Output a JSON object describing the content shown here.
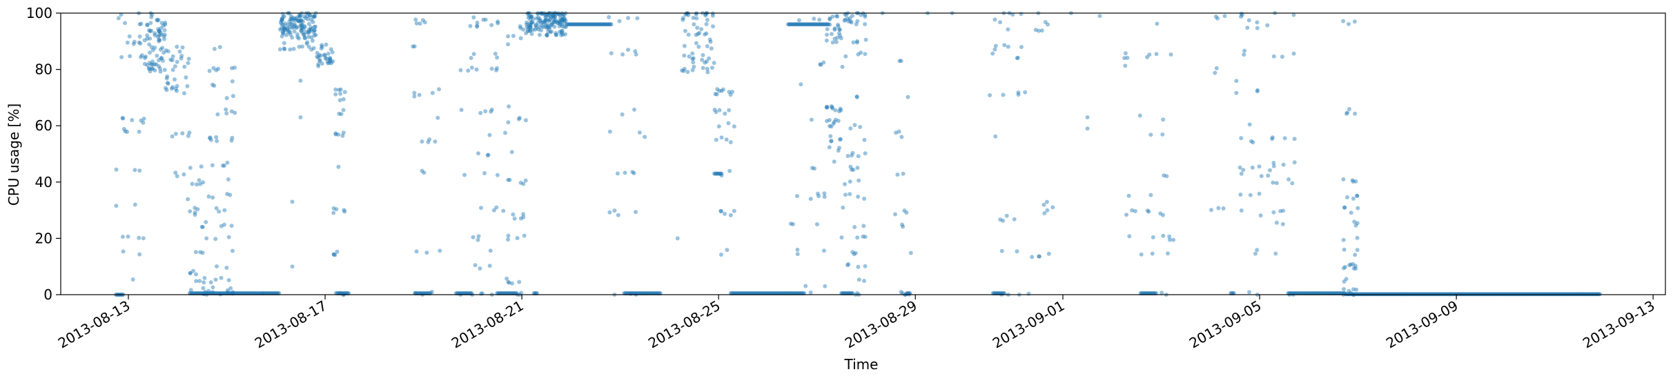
{
  "chart_data": {
    "type": "scatter",
    "title": "",
    "xlabel": "Time",
    "ylabel": "CPU usage [%]",
    "xlim": [
      "2013-08-11T15:00",
      "2013-09-13T06:00"
    ],
    "ylim": [
      0,
      100
    ],
    "grid": false,
    "legend": "none",
    "x_ticks": [
      "2013-08-13",
      "2013-08-17",
      "2013-08-21",
      "2013-08-25",
      "2013-08-29",
      "2013-09-01",
      "2013-09-05",
      "2013-09-09",
      "2013-09-13"
    ],
    "y_ticks": [
      0,
      20,
      40,
      60,
      80,
      100
    ],
    "series_color": "#1f77b4",
    "clusters": [
      {
        "start": "2013-08-12T18:00",
        "end": "2013-08-13T08:00",
        "count": 40,
        "values": [
          0,
          5,
          15,
          20,
          32,
          44,
          58,
          62,
          69,
          84,
          86,
          90,
          92,
          95,
          97,
          99,
          100
        ]
      },
      {
        "start": "2013-08-13T08:00",
        "end": "2013-08-13T18:00",
        "count": 70,
        "values": [
          80,
          81,
          82,
          84,
          86,
          88,
          90,
          92,
          94,
          96,
          98,
          100
        ]
      },
      {
        "start": "2013-08-13T18:00",
        "end": "2013-08-14T06:00",
        "count": 40,
        "values": [
          72,
          74,
          76,
          78,
          80,
          82,
          84,
          86,
          88,
          90,
          57,
          43,
          33
        ]
      },
      {
        "start": "2013-08-14T06:00",
        "end": "2013-08-14T14:00",
        "count": 30,
        "values": [
          0,
          2,
          5,
          8,
          15,
          25,
          29,
          30,
          40,
          45
        ]
      },
      {
        "start": "2013-08-14T14:00",
        "end": "2013-08-15T04:00",
        "count": 60,
        "values": [
          0,
          2,
          5,
          10,
          15,
          20,
          25,
          30,
          35,
          40,
          46,
          55,
          65,
          70,
          75,
          80,
          87
        ]
      },
      {
        "start": "2013-08-16T02:00",
        "end": "2013-08-16T20:00",
        "count": 130,
        "values": [
          88,
          90,
          92,
          93,
          94,
          95,
          96,
          97,
          98,
          99,
          100
        ]
      },
      {
        "start": "2013-08-16T20:00",
        "end": "2013-08-17T04:00",
        "count": 30,
        "values": [
          82,
          83,
          84,
          85,
          86,
          88
        ]
      },
      {
        "start": "2013-08-17T04:00",
        "end": "2013-08-17T10:00",
        "count": 30,
        "values": [
          72,
          70,
          65,
          57,
          45,
          30,
          15,
          0
        ]
      },
      {
        "start": "2013-08-18T18:00",
        "end": "2013-08-19T08:00",
        "count": 25,
        "values": [
          0,
          15,
          43,
          55,
          62,
          70,
          72,
          89,
          97
        ]
      },
      {
        "start": "2013-08-19T18:00",
        "end": "2013-08-20T16:00",
        "count": 50,
        "values": [
          0,
          10,
          15,
          20,
          30,
          43,
          50,
          57,
          65,
          80,
          85,
          96,
          98
        ]
      },
      {
        "start": "2013-08-20T16:00",
        "end": "2013-08-21T02:00",
        "count": 35,
        "values": [
          0,
          5,
          10,
          20,
          28,
          40,
          50,
          55,
          62,
          67,
          88,
          92,
          95
        ]
      },
      {
        "start": "2013-08-21T02:00",
        "end": "2013-08-21T22:00",
        "count": 140,
        "values": [
          93,
          95,
          96,
          97,
          98,
          99,
          100
        ]
      },
      {
        "start": "2013-08-22T18:00",
        "end": "2013-08-23T12:00",
        "count": 25,
        "values": [
          0,
          15,
          29,
          43,
          57,
          65,
          86,
          98
        ]
      },
      {
        "start": "2013-08-24T06:00",
        "end": "2013-08-24T22:00",
        "count": 60,
        "values": [
          80,
          83,
          85,
          88,
          90,
          92,
          93,
          95,
          97,
          99,
          100
        ]
      },
      {
        "start": "2013-08-24T22:00",
        "end": "2013-08-25T08:00",
        "count": 30,
        "values": [
          15,
          29,
          43,
          55,
          60,
          65,
          72
        ]
      },
      {
        "start": "2013-08-26T10:00",
        "end": "2013-08-27T04:00",
        "count": 25,
        "values": [
          0,
          3,
          15,
          25,
          35,
          44,
          63,
          74,
          82,
          98
        ]
      },
      {
        "start": "2013-08-27T04:00",
        "end": "2013-08-27T12:00",
        "count": 50,
        "values": [
          48,
          52,
          55,
          57,
          60,
          62,
          66,
          67,
          90,
          92,
          95,
          98
        ]
      },
      {
        "start": "2013-08-27T12:00",
        "end": "2013-08-28T00:00",
        "count": 70,
        "values": [
          0,
          5,
          10,
          15,
          20,
          25,
          30,
          35,
          40,
          45,
          50,
          55,
          60,
          70,
          80,
          85,
          90,
          97,
          99,
          100
        ]
      },
      {
        "start": "2013-08-28T14:00",
        "end": "2013-08-28T22:00",
        "count": 20,
        "values": [
          0,
          15,
          25,
          29,
          43,
          57,
          58,
          70,
          84
        ]
      },
      {
        "start": "2013-08-30T12:00",
        "end": "2013-08-31T06:00",
        "count": 30,
        "values": [
          0,
          15,
          27,
          43,
          57,
          71,
          85,
          88,
          94,
          97,
          100
        ]
      },
      {
        "start": "2013-08-31T06:00",
        "end": "2013-08-31T20:00",
        "count": 15,
        "values": [
          0,
          14,
          29,
          32,
          94,
          96
        ]
      },
      {
        "start": "2013-09-02T06:00",
        "end": "2013-09-03T06:00",
        "count": 35,
        "values": [
          0,
          15,
          20,
          29,
          43,
          56,
          63,
          71,
          85,
          97,
          82,
          85,
          36
        ]
      },
      {
        "start": "2013-09-04T00:00",
        "end": "2013-09-04T12:00",
        "count": 8,
        "values": [
          30,
          72,
          78,
          80,
          98
        ]
      },
      {
        "start": "2013-09-04T12:00",
        "end": "2013-09-05T06:00",
        "count": 35,
        "values": [
          0,
          15,
          29,
          36,
          43,
          45,
          55,
          60,
          72,
          75,
          86,
          95,
          97,
          99
        ]
      },
      {
        "start": "2013-09-05T06:00",
        "end": "2013-09-05T18:00",
        "count": 25,
        "values": [
          0,
          15,
          25,
          29,
          40,
          46,
          55,
          57,
          85,
          100
        ]
      },
      {
        "start": "2013-09-06T16:00",
        "end": "2013-09-07T00:00",
        "count": 45,
        "values": [
          0,
          2,
          5,
          10,
          15,
          20,
          25,
          30,
          35,
          40,
          64,
          65,
          97
        ]
      }
    ],
    "flat_runs": [
      {
        "start": "2013-08-12T18:00",
        "end": "2013-08-12T22:00",
        "y": 0
      },
      {
        "start": "2013-08-14T06:00",
        "end": "2013-08-15T02:00",
        "y": 0.5
      },
      {
        "start": "2013-08-15T02:00",
        "end": "2013-08-15T18:00",
        "y": 0.5
      },
      {
        "start": "2013-08-15T18:00",
        "end": "2013-08-16T02:00",
        "y": 0.5
      },
      {
        "start": "2013-08-17T06:00",
        "end": "2013-08-17T12:00",
        "y": 0.5
      },
      {
        "start": "2013-08-18T20:00",
        "end": "2013-08-19T04:00",
        "y": 0.5
      },
      {
        "start": "2013-08-19T16:00",
        "end": "2013-08-20T00:00",
        "y": 0.5
      },
      {
        "start": "2013-08-20T12:00",
        "end": "2013-08-20T22:00",
        "y": 0.5
      },
      {
        "start": "2013-08-21T06:00",
        "end": "2013-08-21T08:00",
        "y": 0.5
      },
      {
        "start": "2013-08-21T22:00",
        "end": "2013-08-22T20:00",
        "y": 96
      },
      {
        "start": "2013-08-23T02:00",
        "end": "2013-08-23T20:00",
        "y": 0.5
      },
      {
        "start": "2013-08-24T22:00",
        "end": "2013-08-25T02:00",
        "y": 43
      },
      {
        "start": "2013-08-25T06:00",
        "end": "2013-08-26T18:00",
        "y": 0.5
      },
      {
        "start": "2013-08-26T10:00",
        "end": "2013-08-27T06:00",
        "y": 96
      },
      {
        "start": "2013-08-27T12:00",
        "end": "2013-08-27T18:00",
        "y": 0.5
      },
      {
        "start": "2013-08-28T20:00",
        "end": "2013-08-28T22:00",
        "y": 0.5
      },
      {
        "start": "2013-08-30T14:00",
        "end": "2013-08-30T20:00",
        "y": 0.5
      },
      {
        "start": "2013-09-02T14:00",
        "end": "2013-09-02T22:00",
        "y": 0.5
      },
      {
        "start": "2013-09-04T10:00",
        "end": "2013-09-04T12:00",
        "y": 0.5
      },
      {
        "start": "2013-09-05T14:00",
        "end": "2013-09-06T18:00",
        "y": 0.5
      },
      {
        "start": "2013-09-06T18:00",
        "end": "2013-09-11T22:00",
        "y": 0.2
      }
    ],
    "scattered_high": [
      {
        "x": "2013-08-29T06:00",
        "y": 100
      },
      {
        "x": "2013-08-29T18:00",
        "y": 100
      },
      {
        "x": "2013-08-31T12:00",
        "y": 100
      },
      {
        "x": "2013-09-01T18:00",
        "y": 99
      },
      {
        "x": "2013-09-01T04:00",
        "y": 100
      },
      {
        "x": "2013-09-01T12:00",
        "y": 63
      },
      {
        "x": "2013-09-01T12:00",
        "y": 59
      },
      {
        "x": "2013-08-28T08:00",
        "y": 100
      },
      {
        "x": "2013-08-16T12:00",
        "y": 63
      },
      {
        "x": "2013-08-16T12:00",
        "y": 76
      },
      {
        "x": "2013-08-16T08:00",
        "y": 33
      },
      {
        "x": "2013-08-16T08:00",
        "y": 10
      },
      {
        "x": "2013-08-21T16:00",
        "y": 100
      },
      {
        "x": "2013-08-24T04:00",
        "y": 20
      }
    ]
  }
}
